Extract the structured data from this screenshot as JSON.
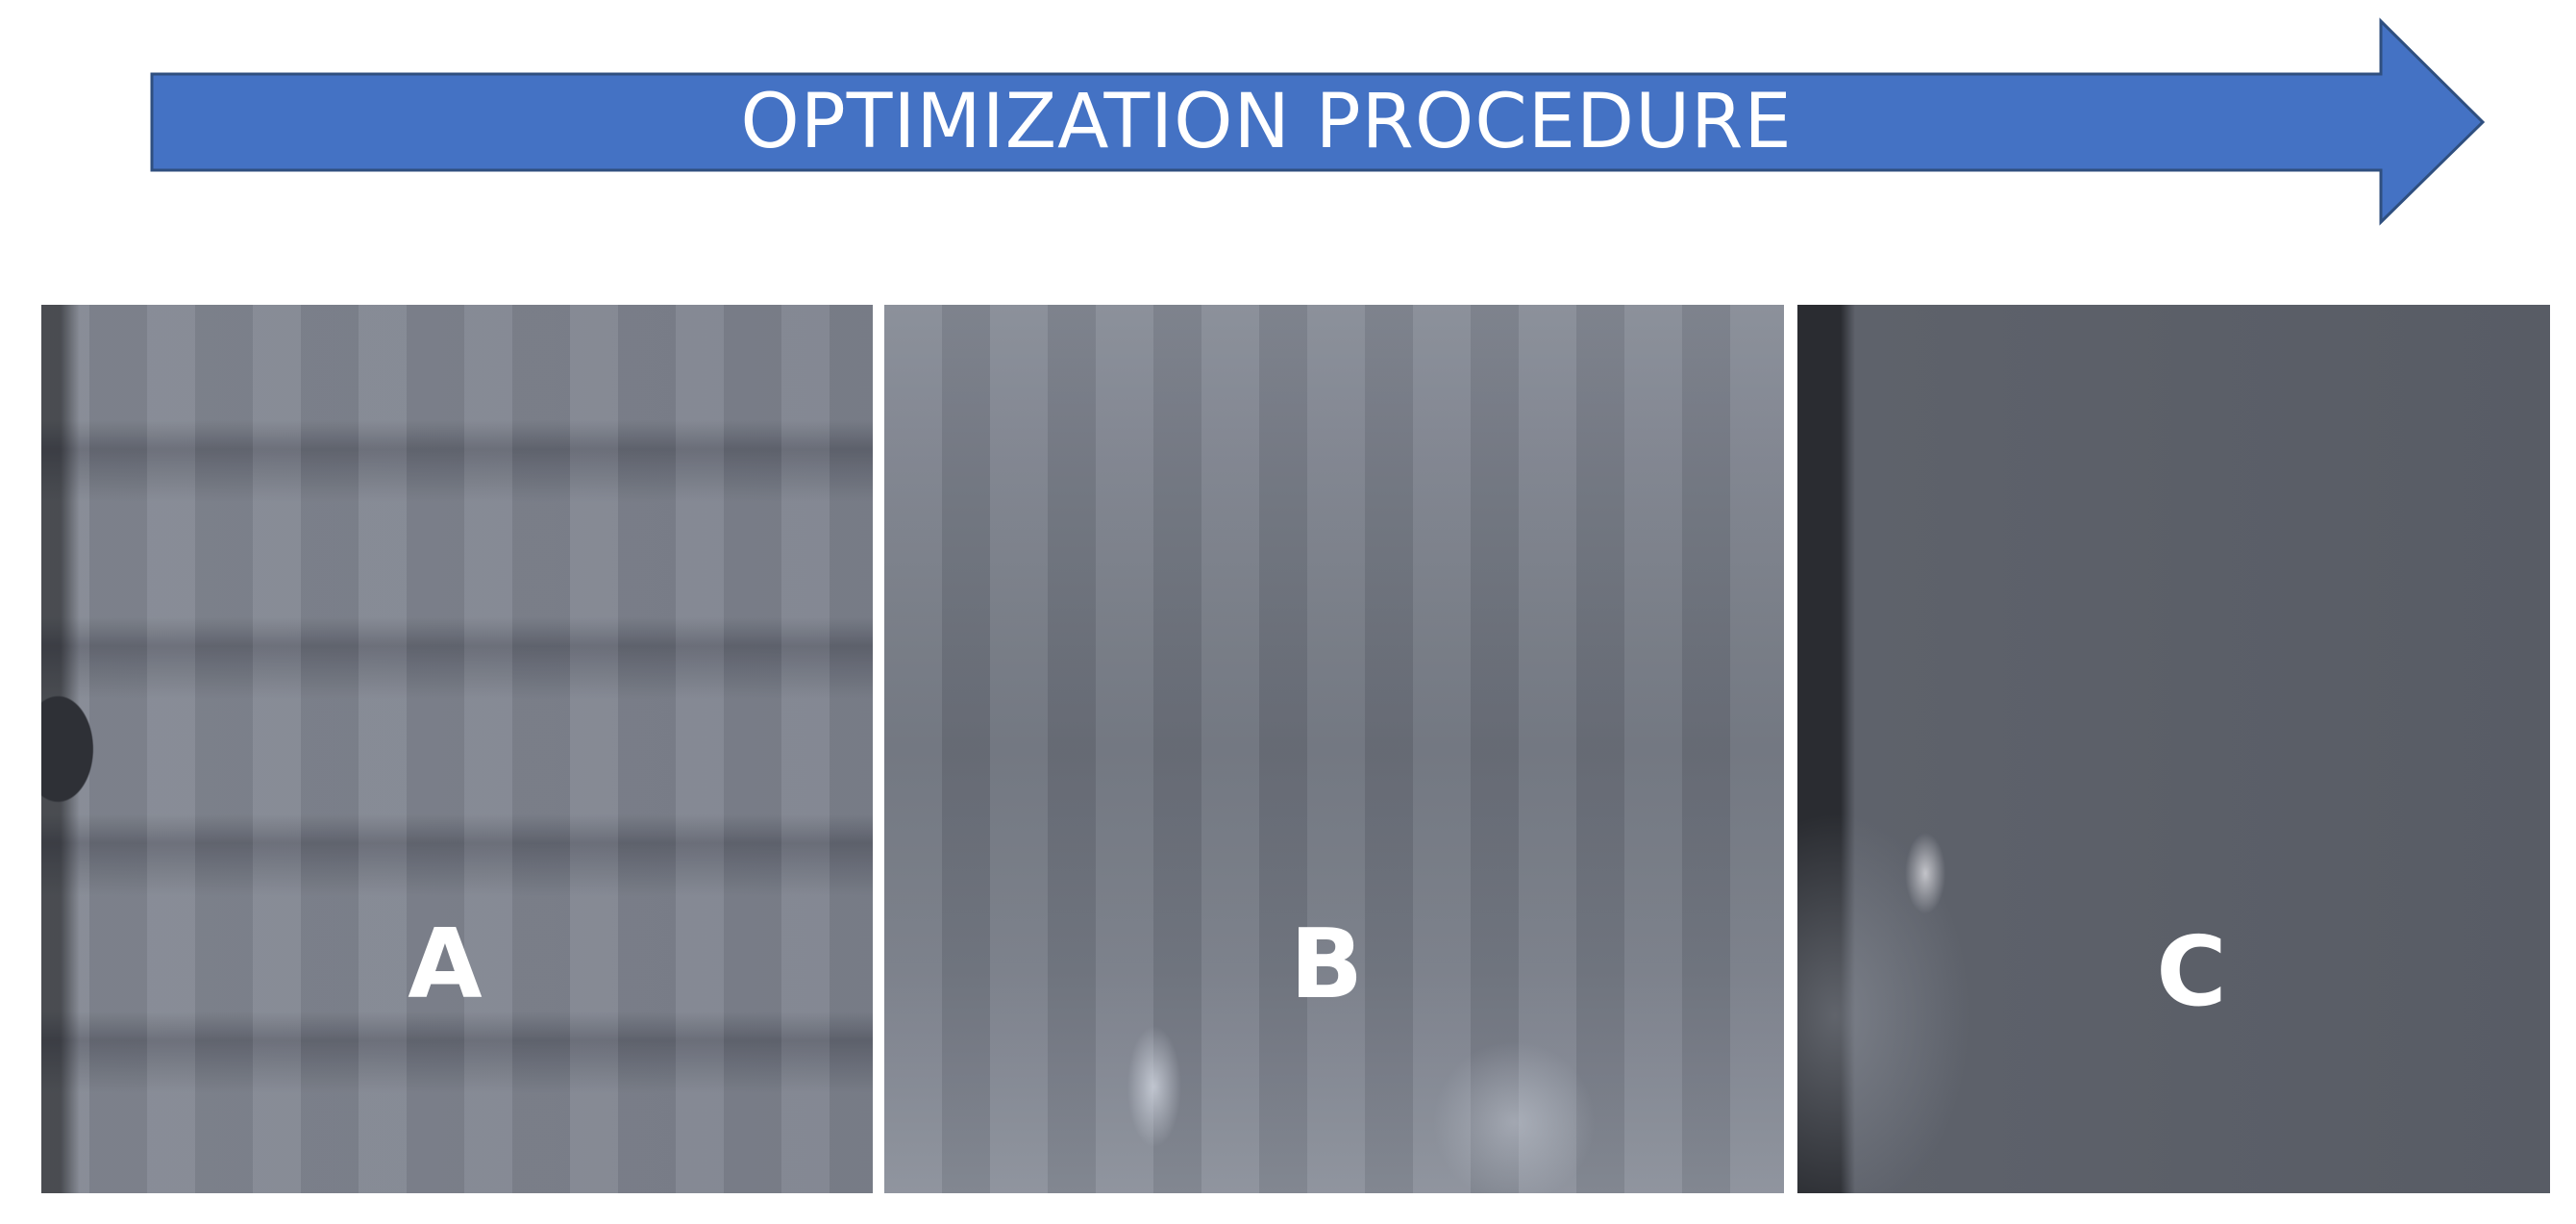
{
  "arrow": {
    "label": "OPTIMIZATION PROCEDURE",
    "color": "#4472c4",
    "border_color": "#2f4f7f"
  },
  "panels": [
    {
      "label": "A"
    },
    {
      "label": "B"
    },
    {
      "label": "C"
    }
  ]
}
